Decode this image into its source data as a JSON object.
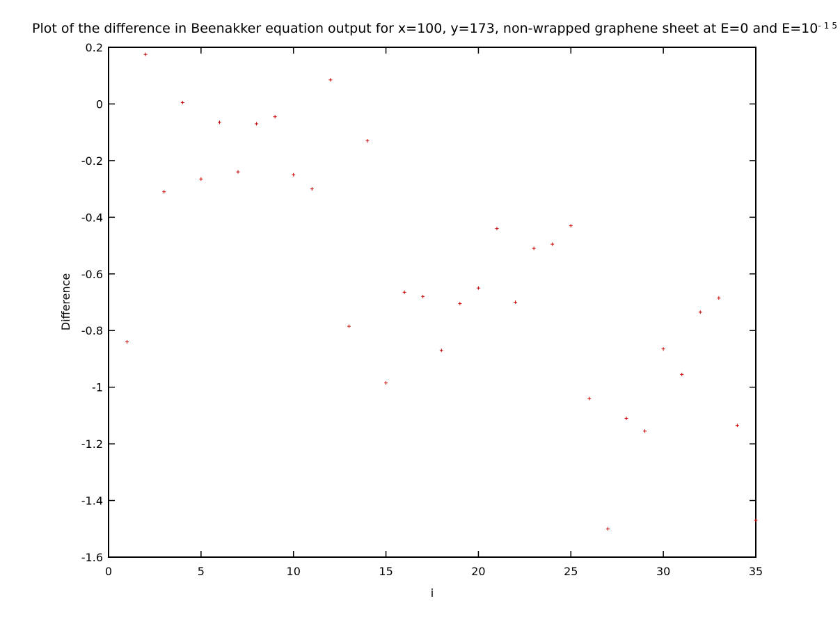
{
  "chart_data": {
    "type": "scatter",
    "title": "Plot of the difference in Beenakker equation output for x=100, y=173, non-wrapped graphene sheet at E=0 and E=10",
    "title_superscript": "-15",
    "xlabel": "i",
    "ylabel": "Difference",
    "xlim": [
      0,
      35
    ],
    "ylim": [
      -1.6,
      0.2
    ],
    "xticks": [
      0,
      5,
      10,
      15,
      20,
      25,
      30,
      35
    ],
    "xtick_labels": [
      "0",
      "5",
      "10",
      "15",
      "20",
      "25",
      "30",
      "35"
    ],
    "yticks": [
      0.2,
      0,
      -0.2,
      -0.4,
      -0.6,
      -0.8,
      -1,
      -1.2,
      -1.4,
      -1.6
    ],
    "ytick_labels": [
      "0.2",
      "0",
      "-0.2",
      "-0.4",
      "-0.6",
      "-0.8",
      "-1",
      "-1.2",
      "-1.4",
      "-1.6"
    ],
    "grid": false,
    "marker": "+",
    "color": "#cc0000",
    "series": [
      {
        "x": [
          1,
          2,
          3,
          4,
          5,
          6,
          7,
          8,
          9,
          10,
          11,
          12,
          13,
          14,
          15,
          16,
          17,
          18,
          19,
          20,
          21,
          22,
          23,
          24,
          25,
          26,
          27,
          28,
          29,
          30,
          31,
          32,
          33,
          34,
          35
        ],
        "values": [
          -0.84,
          0.175,
          -0.31,
          0.005,
          -0.265,
          -0.065,
          -0.24,
          -0.07,
          -0.045,
          -0.25,
          -0.3,
          0.085,
          -0.785,
          -0.13,
          -0.985,
          -0.665,
          -0.68,
          -0.87,
          -0.705,
          -0.65,
          -0.44,
          -0.7,
          -0.51,
          -0.495,
          -0.43,
          -1.04,
          -1.5,
          -1.11,
          -1.155,
          -0.865,
          -0.955,
          -0.735,
          -0.685,
          -1.135,
          -1.47
        ]
      }
    ]
  }
}
